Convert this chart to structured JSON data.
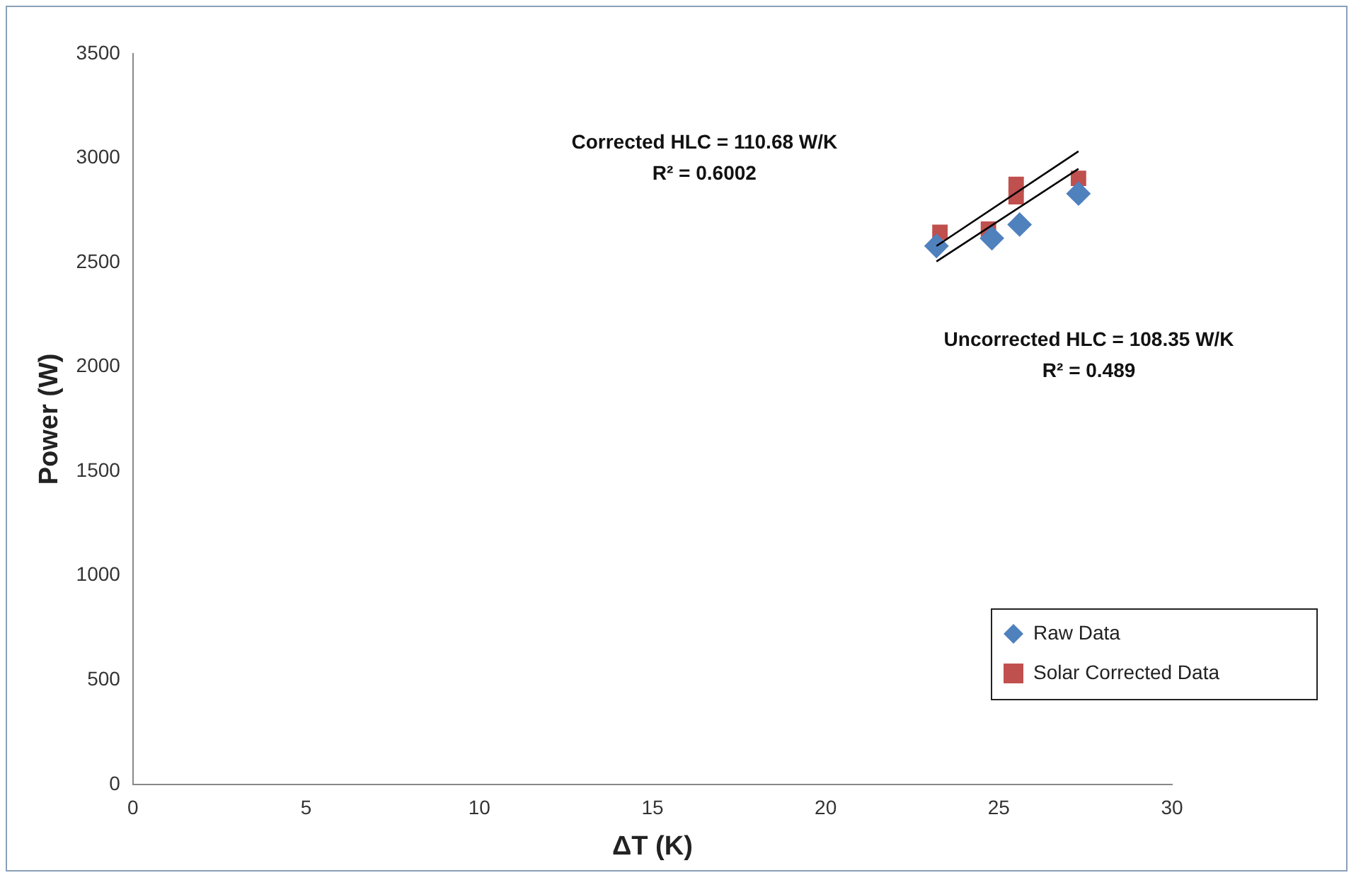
{
  "chart_data": {
    "type": "scatter",
    "xlabel": "ΔT (K)",
    "ylabel": "Power (W)",
    "xlim": [
      0,
      30
    ],
    "xticks": [
      0,
      5,
      10,
      15,
      20,
      25,
      30
    ],
    "ylim": [
      0,
      3500
    ],
    "yticks": [
      0,
      500,
      1000,
      1500,
      2000,
      2500,
      3000,
      3500
    ],
    "grid": false,
    "legend": "bottom right",
    "series": [
      {
        "name": "Raw Data",
        "color": "#4f81bd",
        "marker": "diamond",
        "x": [
          23.2,
          24.8,
          25.6,
          27.3
        ],
        "values": [
          2579,
          2616,
          2682,
          2830
        ]
      },
      {
        "name": "Solar Corrected Data",
        "color": "#c0504d",
        "marker": "square",
        "x": [
          23.3,
          24.7,
          25.5,
          25.5,
          27.3
        ],
        "values": [
          2645,
          2660,
          2874,
          2815,
          2903
        ]
      },
      {
        "type": "line",
        "color": "#000000",
        "marker": "none",
        "x": [
          23.2,
          27.3
        ],
        "values": [
          2579,
          3033
        ]
      },
      {
        "type": "line",
        "color": "#000000",
        "marker": "none",
        "x": [
          23.2,
          27.3
        ],
        "values": [
          2505,
          2949
        ]
      }
    ],
    "annotations": [
      "Corrected HLC = 110.68 W/K\nR² = 0.6002",
      "Uncorrected HLC = 108.35 W/K\nR² = 0.489"
    ]
  }
}
